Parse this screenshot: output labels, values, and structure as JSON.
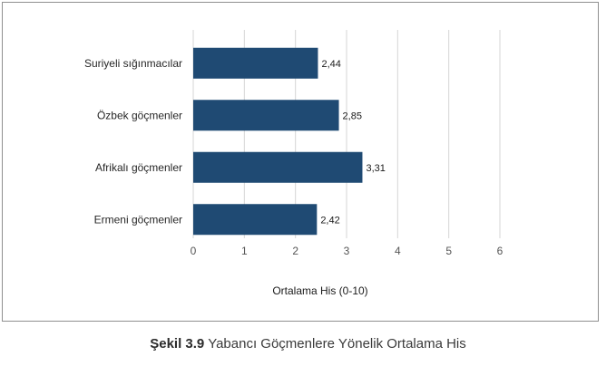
{
  "caption": {
    "number": "Şekil 3.9",
    "text": "Yabancı Göçmenlere Yönelik Ortalama His"
  },
  "chart_data": {
    "type": "bar",
    "orientation": "horizontal",
    "categories": [
      "Suriyeli sığınmacılar",
      "Özbek göçmenler",
      "Afrikalı göçmenler",
      "Ermeni göçmenler"
    ],
    "values": [
      2.44,
      2.85,
      3.31,
      2.42
    ],
    "value_labels": [
      "2,44",
      "2,85",
      "3,31",
      "2,42"
    ],
    "xlabel": "Ortalama His (0-10)",
    "ylabel": "",
    "xlim": [
      0,
      6
    ],
    "xticks": [
      "0",
      "1",
      "2",
      "3",
      "4",
      "5",
      "6"
    ],
    "grid": true,
    "bar_color": "#1f4a73",
    "grid_color": "#d6d6d6"
  }
}
